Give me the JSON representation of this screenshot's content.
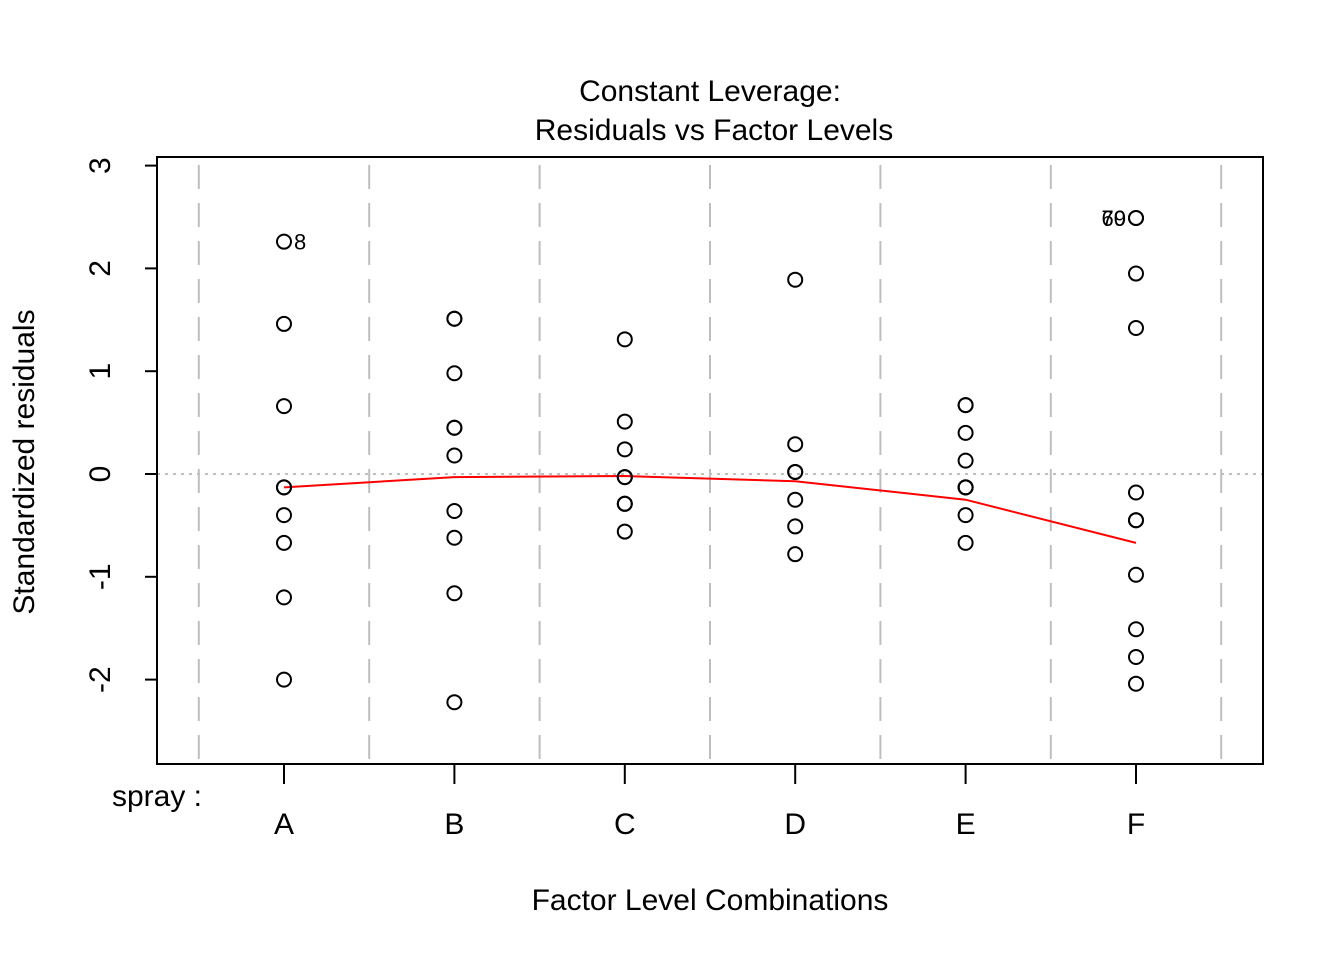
{
  "chart_data": {
    "type": "scatter",
    "title": "Constant Leverage:",
    "subtitle": "Residuals vs Factor Levels",
    "xlabel": "Factor Level Combinations",
    "ylabel": "Standardized residuals",
    "factor_name": "spray :",
    "categories": [
      "A",
      "B",
      "C",
      "D",
      "E",
      "F"
    ],
    "ylim": [
      -2.8,
      3.0
    ],
    "yticks": [
      -2,
      -1,
      0,
      1,
      2,
      3
    ],
    "ytick_labels": [
      "-2",
      "-1",
      "0",
      "1",
      "2",
      "3"
    ],
    "grid": "vertical dashed lines between factor levels",
    "reference_line_y": 0,
    "points": {
      "A": [
        2.26,
        1.46,
        0.66,
        -0.13,
        -0.13,
        -0.4,
        -0.67,
        -1.2,
        -2.0
      ],
      "B": [
        1.51,
        1.51,
        0.98,
        0.45,
        0.45,
        0.18,
        -0.36,
        -0.62,
        -1.16,
        -2.22
      ],
      "C": [
        1.31,
        0.51,
        0.24,
        -0.03,
        -0.03,
        -0.29,
        -0.29,
        -0.56
      ],
      "D": [
        1.89,
        0.29,
        0.02,
        0.02,
        -0.25,
        -0.51,
        -0.78
      ],
      "E": [
        0.67,
        0.67,
        0.4,
        0.13,
        -0.13,
        -0.13,
        -0.13,
        -0.4,
        -0.67
      ],
      "F": [
        2.49,
        2.49,
        1.95,
        1.42,
        -0.18,
        -0.45,
        -0.45,
        -0.98,
        -1.51,
        -1.78,
        -2.04
      ]
    },
    "point_labels": [
      {
        "text": "8",
        "category": "A",
        "y": 2.26,
        "side": "right"
      },
      {
        "text": "69",
        "category": "F",
        "y": 2.49,
        "side": "left"
      },
      {
        "text": "70",
        "category": "F",
        "y": 2.49,
        "side": "left"
      }
    ],
    "smooth_line": {
      "color": "#ff0000",
      "values": [
        -0.13,
        -0.03,
        -0.02,
        -0.07,
        -0.25,
        -0.67
      ]
    }
  }
}
